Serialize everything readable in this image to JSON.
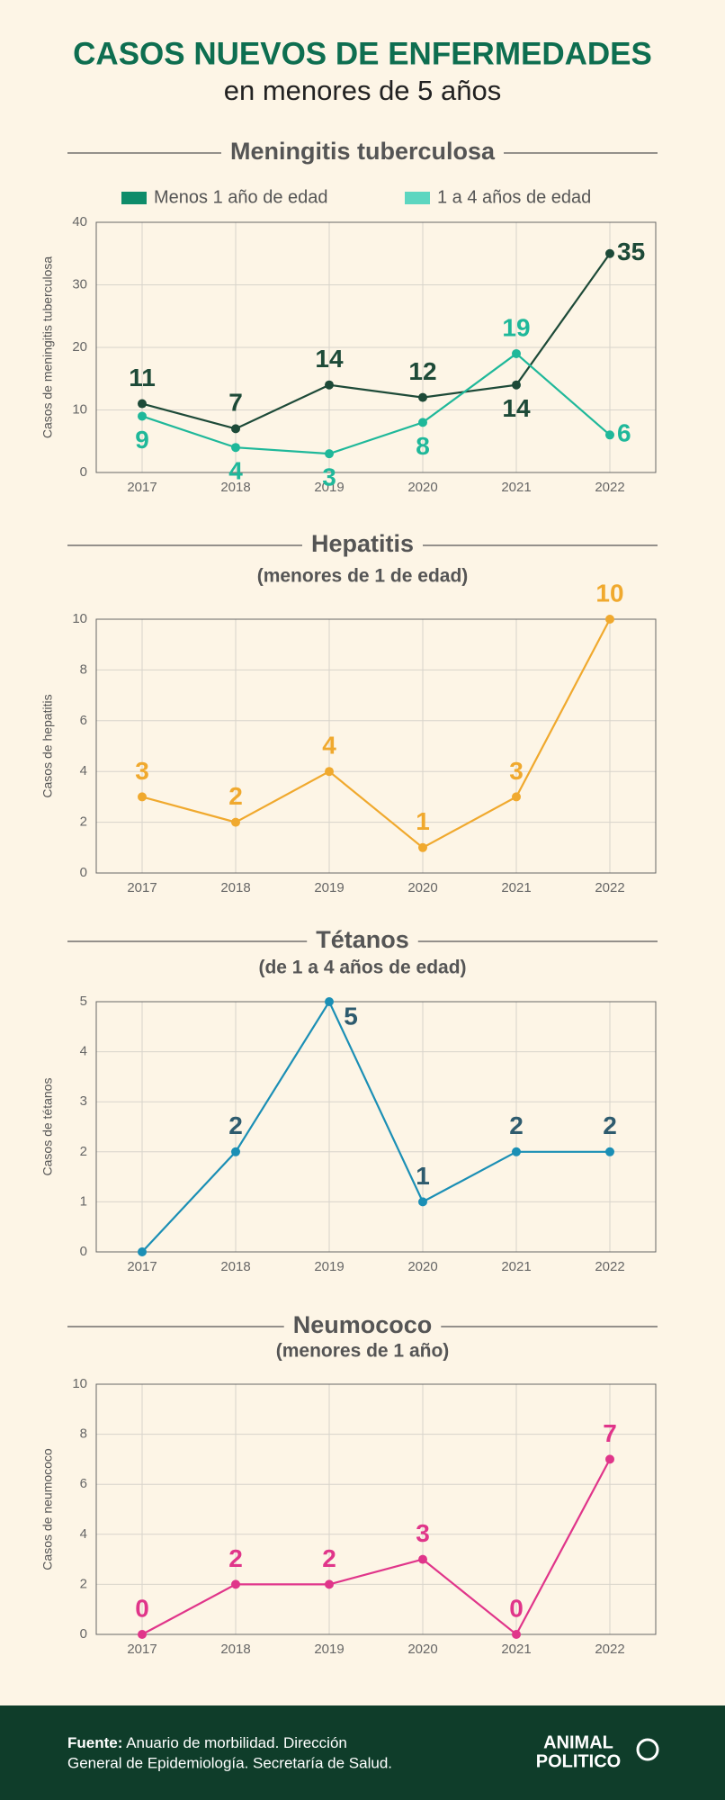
{
  "header": {
    "title": "CASOS NUEVOS DE ENFERMEDADES",
    "subtitle": "en menores de 5 años"
  },
  "chart_data": [
    {
      "type": "line",
      "title": "Meningitis tuberculosa",
      "y_label": "Casos de meningitis tuberculosa",
      "categories": [
        "2017",
        "2018",
        "2019",
        "2020",
        "2021",
        "2022"
      ],
      "series": [
        {
          "name": "Menos 1 año de edad",
          "color": "#1d4a38",
          "legend_color": "#0e8c6a",
          "values": [
            11,
            7,
            14,
            12,
            14,
            35
          ]
        },
        {
          "name": "1 a 4 años de edad",
          "color": "#1fb89a",
          "legend_color": "#5dd6c0",
          "values": [
            9,
            4,
            3,
            8,
            19,
            6
          ]
        }
      ],
      "ylim": [
        0,
        40
      ],
      "yticks": [
        0,
        10,
        20,
        30,
        40
      ],
      "grid": true,
      "legend": "top"
    },
    {
      "type": "line",
      "title": "Hepatitis",
      "subtitle": "(menores de 1 de edad)",
      "y_label": "Casos de hepatitis",
      "categories": [
        "2017",
        "2018",
        "2019",
        "2020",
        "2021",
        "2022"
      ],
      "series": [
        {
          "color": "#f0a92e",
          "values": [
            3,
            2,
            4,
            1,
            3,
            10
          ]
        }
      ],
      "ylim": [
        0,
        10
      ],
      "yticks": [
        0,
        2,
        4,
        6,
        8,
        10
      ],
      "grid": true
    },
    {
      "type": "line",
      "title": "Tétanos",
      "subtitle": "(de 1 a 4 años de edad)",
      "y_label": "Casos de tétanos",
      "categories": [
        "2017",
        "2018",
        "2019",
        "2020",
        "2021",
        "2022"
      ],
      "series": [
        {
          "color": "#1b8fb5",
          "label_color": "#2e5b6e",
          "values": [
            0,
            2,
            5,
            1,
            2,
            2
          ],
          "value_labels": [
            null,
            "2",
            "5",
            "1",
            "2",
            "2"
          ]
        }
      ],
      "ylim": [
        0,
        5
      ],
      "yticks": [
        0,
        1,
        2,
        3,
        4,
        5
      ],
      "grid": true
    },
    {
      "type": "line",
      "title": "Neumococo",
      "subtitle": "(menores de 1 año)",
      "y_label": "Casos de neumococo",
      "categories": [
        "2017",
        "2018",
        "2019",
        "2020",
        "2021",
        "2022"
      ],
      "series": [
        {
          "color": "#e0358a",
          "values": [
            0,
            2,
            2,
            3,
            0,
            7
          ]
        }
      ],
      "ylim": [
        0,
        10
      ],
      "yticks": [
        0,
        2,
        4,
        6,
        8,
        10
      ],
      "grid": true
    }
  ],
  "footer": {
    "source_label": "Fuente:",
    "source_line1": "Anuario de morbilidad. Dirección",
    "source_line2": "General de Epidemiología. Secretaría de Salud.",
    "logo_top": "ANIMAL",
    "logo_bottom": "POLITICO"
  }
}
